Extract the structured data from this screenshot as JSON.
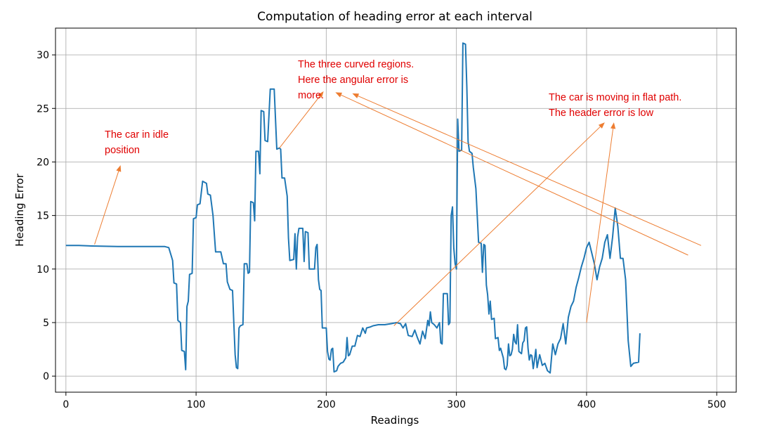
{
  "chart_data": {
    "type": "line",
    "title": "Computation of heading error at each interval",
    "xlabel": "Readings",
    "ylabel": "Heading Error",
    "xlim": [
      -8,
      515
    ],
    "ylim": [
      -1.5,
      32.5
    ],
    "xticks": [
      0,
      100,
      200,
      300,
      400,
      500
    ],
    "yticks": [
      0,
      5,
      10,
      15,
      20,
      25,
      30
    ],
    "grid": true,
    "legend": "none",
    "line_color": "#1f77b4",
    "annotation_color": "#e00000",
    "arrow_color": "#ed7d31",
    "series": [
      {
        "points": [
          [
            0,
            12.2
          ],
          [
            10,
            12.2
          ],
          [
            20,
            12.15
          ],
          [
            40,
            12.1
          ],
          [
            60,
            12.1
          ],
          [
            76,
            12.1
          ],
          [
            79,
            12.0
          ],
          [
            81,
            11.2
          ],
          [
            82,
            10.8
          ],
          [
            83,
            8.7
          ],
          [
            85,
            8.6
          ],
          [
            86,
            5.2
          ],
          [
            88,
            5.0
          ],
          [
            89,
            2.4
          ],
          [
            91,
            2.3
          ],
          [
            92,
            0.6
          ],
          [
            93,
            6.5
          ],
          [
            94,
            7.0
          ],
          [
            95,
            9.5
          ],
          [
            97,
            9.6
          ],
          [
            98,
            14.7
          ],
          [
            100,
            14.8
          ],
          [
            101,
            16.0
          ],
          [
            103,
            16.1
          ],
          [
            105,
            18.2
          ],
          [
            108,
            18.0
          ],
          [
            109,
            17.0
          ],
          [
            111,
            16.9
          ],
          [
            113,
            15.0
          ],
          [
            115,
            11.6
          ],
          [
            119,
            11.6
          ],
          [
            121,
            10.5
          ],
          [
            123,
            10.5
          ],
          [
            124,
            8.8
          ],
          [
            126,
            8.1
          ],
          [
            128,
            8.0
          ],
          [
            129,
            5.0
          ],
          [
            130,
            2.0
          ],
          [
            131,
            0.8
          ],
          [
            132,
            0.7
          ],
          [
            133,
            4.5
          ],
          [
            134,
            4.7
          ],
          [
            136,
            4.8
          ],
          [
            137,
            10.5
          ],
          [
            139,
            10.5
          ],
          [
            140,
            9.6
          ],
          [
            141,
            9.7
          ],
          [
            142,
            16.3
          ],
          [
            144,
            16.2
          ],
          [
            145,
            14.5
          ],
          [
            146,
            21.0
          ],
          [
            148,
            21.0
          ],
          [
            149,
            18.9
          ],
          [
            150,
            24.8
          ],
          [
            152,
            24.7
          ],
          [
            153,
            22.0
          ],
          [
            155,
            21.9
          ],
          [
            157,
            26.8
          ],
          [
            160,
            26.8
          ],
          [
            162,
            21.2
          ],
          [
            164,
            21.3
          ],
          [
            165,
            21.2
          ],
          [
            166,
            18.5
          ],
          [
            168,
            18.5
          ],
          [
            170,
            16.8
          ],
          [
            171,
            12.9
          ],
          [
            172,
            10.8
          ],
          [
            175,
            10.9
          ],
          [
            176,
            13.3
          ],
          [
            177,
            10.0
          ],
          [
            178,
            13.0
          ],
          [
            179,
            13.8
          ],
          [
            182,
            13.8
          ],
          [
            183,
            10.7
          ],
          [
            184,
            13.5
          ],
          [
            186,
            13.4
          ],
          [
            187,
            10.0
          ],
          [
            191,
            10.0
          ],
          [
            192,
            12.0
          ],
          [
            193,
            12.3
          ],
          [
            194,
            9.0
          ],
          [
            195,
            8.1
          ],
          [
            196,
            8.0
          ],
          [
            197,
            4.5
          ],
          [
            200,
            4.5
          ],
          [
            201,
            2.3
          ],
          [
            202,
            1.6
          ],
          [
            203,
            1.5
          ],
          [
            204,
            2.5
          ],
          [
            205,
            2.6
          ],
          [
            206,
            0.4
          ],
          [
            208,
            0.5
          ],
          [
            209,
            0.9
          ],
          [
            211,
            1.2
          ],
          [
            213,
            1.3
          ],
          [
            215,
            1.7
          ],
          [
            216,
            3.6
          ],
          [
            217,
            1.9
          ],
          [
            218,
            2.0
          ],
          [
            220,
            2.8
          ],
          [
            222,
            2.8
          ],
          [
            224,
            3.8
          ],
          [
            226,
            3.7
          ],
          [
            228,
            4.5
          ],
          [
            230,
            4.0
          ],
          [
            231,
            4.5
          ],
          [
            234,
            4.6
          ],
          [
            236,
            4.7
          ],
          [
            240,
            4.8
          ],
          [
            245,
            4.8
          ],
          [
            250,
            4.9
          ],
          [
            254,
            5.0
          ],
          [
            257,
            4.9
          ],
          [
            259,
            4.5
          ],
          [
            261,
            4.9
          ],
          [
            263,
            3.8
          ],
          [
            266,
            3.7
          ],
          [
            268,
            4.3
          ],
          [
            270,
            3.6
          ],
          [
            272,
            3.0
          ],
          [
            274,
            4.2
          ],
          [
            276,
            3.5
          ],
          [
            278,
            5.2
          ],
          [
            279,
            4.7
          ],
          [
            280,
            6.0
          ],
          [
            281,
            5.0
          ],
          [
            283,
            4.8
          ],
          [
            285,
            4.5
          ],
          [
            287,
            5.0
          ],
          [
            288,
            3.1
          ],
          [
            289,
            3.0
          ],
          [
            290,
            7.7
          ],
          [
            293,
            7.7
          ],
          [
            294,
            4.8
          ],
          [
            295,
            5.0
          ],
          [
            296,
            15.0
          ],
          [
            297,
            15.8
          ],
          [
            298,
            12.0
          ],
          [
            299,
            10.5
          ],
          [
            300,
            10.0
          ],
          [
            301,
            24.0
          ],
          [
            302,
            21.0
          ],
          [
            304,
            21.1
          ],
          [
            305,
            31.1
          ],
          [
            307,
            31.0
          ],
          [
            308,
            27.0
          ],
          [
            309,
            21.9
          ],
          [
            310,
            21.0
          ],
          [
            312,
            20.8
          ],
          [
            313,
            19.5
          ],
          [
            315,
            17.5
          ],
          [
            316,
            15.0
          ],
          [
            317,
            12.5
          ],
          [
            319,
            12.4
          ],
          [
            320,
            9.7
          ],
          [
            321,
            12.3
          ],
          [
            322,
            12.2
          ],
          [
            323,
            8.5
          ],
          [
            324,
            7.6
          ],
          [
            325,
            5.8
          ],
          [
            326,
            7.0
          ],
          [
            327,
            5.3
          ],
          [
            329,
            5.4
          ],
          [
            330,
            3.5
          ],
          [
            332,
            3.6
          ],
          [
            333,
            2.4
          ],
          [
            334,
            2.6
          ],
          [
            336,
            1.7
          ],
          [
            337,
            0.7
          ],
          [
            338,
            0.6
          ],
          [
            339,
            1.0
          ],
          [
            340,
            3.0
          ],
          [
            341,
            1.9
          ],
          [
            342,
            2.0
          ],
          [
            343,
            2.5
          ],
          [
            344,
            3.9
          ],
          [
            345,
            3.2
          ],
          [
            346,
            3.0
          ],
          [
            347,
            4.8
          ],
          [
            348,
            2.3
          ],
          [
            349,
            2.2
          ],
          [
            350,
            2.1
          ],
          [
            351,
            3.1
          ],
          [
            352,
            3.3
          ],
          [
            353,
            4.5
          ],
          [
            354,
            4.6
          ],
          [
            355,
            2.6
          ],
          [
            356,
            1.5
          ],
          [
            357,
            2.0
          ],
          [
            358,
            1.9
          ],
          [
            359,
            0.7
          ],
          [
            360,
            1.5
          ],
          [
            361,
            2.5
          ],
          [
            362,
            0.8
          ],
          [
            364,
            2.0
          ],
          [
            366,
            1.0
          ],
          [
            368,
            1.2
          ],
          [
            370,
            0.5
          ],
          [
            372,
            0.3
          ],
          [
            374,
            3.0
          ],
          [
            376,
            2.0
          ],
          [
            378,
            3.0
          ],
          [
            380,
            3.5
          ],
          [
            382,
            4.9
          ],
          [
            384,
            3.0
          ],
          [
            386,
            5.5
          ],
          [
            388,
            6.5
          ],
          [
            390,
            7.0
          ],
          [
            392,
            8.3
          ],
          [
            394,
            9.2
          ],
          [
            396,
            10.2
          ],
          [
            398,
            11.0
          ],
          [
            400,
            12.0
          ],
          [
            402,
            12.5
          ],
          [
            404,
            11.5
          ],
          [
            406,
            10.5
          ],
          [
            408,
            9.0
          ],
          [
            410,
            10.2
          ],
          [
            412,
            11.0
          ],
          [
            414,
            12.5
          ],
          [
            416,
            13.2
          ],
          [
            418,
            11.0
          ],
          [
            420,
            13.0
          ],
          [
            422,
            15.7
          ],
          [
            424,
            14.0
          ],
          [
            426,
            11.0
          ],
          [
            428,
            11.0
          ],
          [
            430,
            9.0
          ],
          [
            432,
            3.3
          ],
          [
            434,
            0.9
          ],
          [
            436,
            1.2
          ],
          [
            440,
            1.3
          ],
          [
            441,
            4.0
          ]
        ]
      }
    ],
    "annotations": [
      {
        "lines": [
          "The car in idle",
          "position"
        ],
        "arrows": [
          [
            [
              22,
              12.3
            ],
            [
              42,
              19.7
            ]
          ]
        ]
      },
      {
        "lines": [
          "The three curved regions.",
          "Here the angular error is",
          "more."
        ],
        "arrows": [
          [
            [
              164,
              21.3
            ],
            [
              198,
              26.6
            ]
          ],
          [
            [
              478,
              11.3
            ],
            [
              207,
              26.5
            ]
          ],
          [
            [
              488,
              12.2
            ],
            [
              220,
              26.4
            ]
          ]
        ]
      },
      {
        "lines": [
          "The car is moving in flat path.",
          "The header error is low"
        ],
        "arrows": [
          [
            [
              252,
              4.7
            ],
            [
              414,
              23.7
            ]
          ],
          [
            [
              400,
              5.0
            ],
            [
              421,
              23.7
            ]
          ]
        ]
      }
    ]
  }
}
